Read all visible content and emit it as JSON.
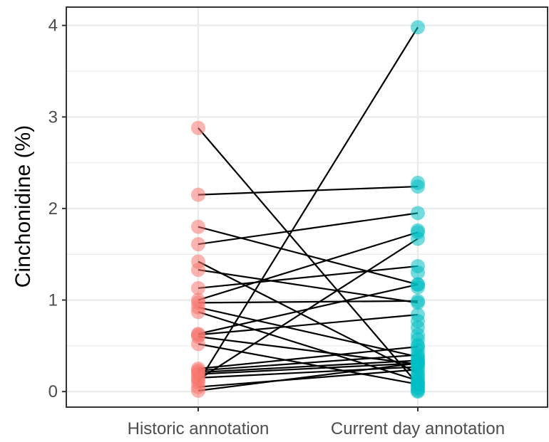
{
  "chart_data": {
    "type": "scatter",
    "subtype": "paired-dot-plot",
    "title": "",
    "xlabel": "",
    "ylabel": "Cinchonidine (%)",
    "categories": [
      "Historic annotation",
      "Current day annotation"
    ],
    "ylim": [
      -0.17,
      4.2
    ],
    "yticks": [
      0,
      1,
      2,
      3,
      4
    ],
    "grid": true,
    "legend": "none",
    "colors": {
      "historic": "#F8766D",
      "current": "#00BFC4",
      "line": "#000000",
      "grid": "#EBEBEB",
      "panel_border": "#333333"
    },
    "pairs": [
      {
        "historic": 2.88,
        "current": 0.08
      },
      {
        "historic": 2.15,
        "current": 2.24
      },
      {
        "historic": 1.8,
        "current": 1.17
      },
      {
        "historic": 1.61,
        "current": 1.95
      },
      {
        "historic": 1.42,
        "current": 0.2
      },
      {
        "historic": 1.33,
        "current": 0.97
      },
      {
        "historic": 1.13,
        "current": 1.37
      },
      {
        "historic": 1.0,
        "current": 1.74
      },
      {
        "historic": 0.97,
        "current": 0.99
      },
      {
        "historic": 0.92,
        "current": 0.38
      },
      {
        "historic": 0.87,
        "current": 0.12
      },
      {
        "historic": 0.63,
        "current": 1.17
      },
      {
        "historic": 0.62,
        "current": 0.84
      },
      {
        "historic": 0.6,
        "current": 0.3
      },
      {
        "historic": 0.52,
        "current": 0.08
      },
      {
        "historic": 0.25,
        "current": 0.49
      },
      {
        "historic": 0.23,
        "current": 0.4
      },
      {
        "historic": 0.21,
        "current": 0.34
      },
      {
        "historic": 0.19,
        "current": 0.31
      },
      {
        "historic": 0.15,
        "current": 0.27
      },
      {
        "historic": 0.13,
        "current": 1.67
      },
      {
        "historic": 0.1,
        "current": 3.98
      },
      {
        "historic": 0.05,
        "current": 0.24
      },
      {
        "historic": 0.01,
        "current": 0.31
      }
    ],
    "unpaired_current": [
      2.28,
      1.76,
      1.3,
      1.14,
      0.77,
      0.7,
      0.62,
      0.57,
      0.51,
      0.45,
      0.35,
      0.18,
      0.15,
      0.1,
      0.05,
      0.03,
      0.01,
      0.0
    ]
  }
}
